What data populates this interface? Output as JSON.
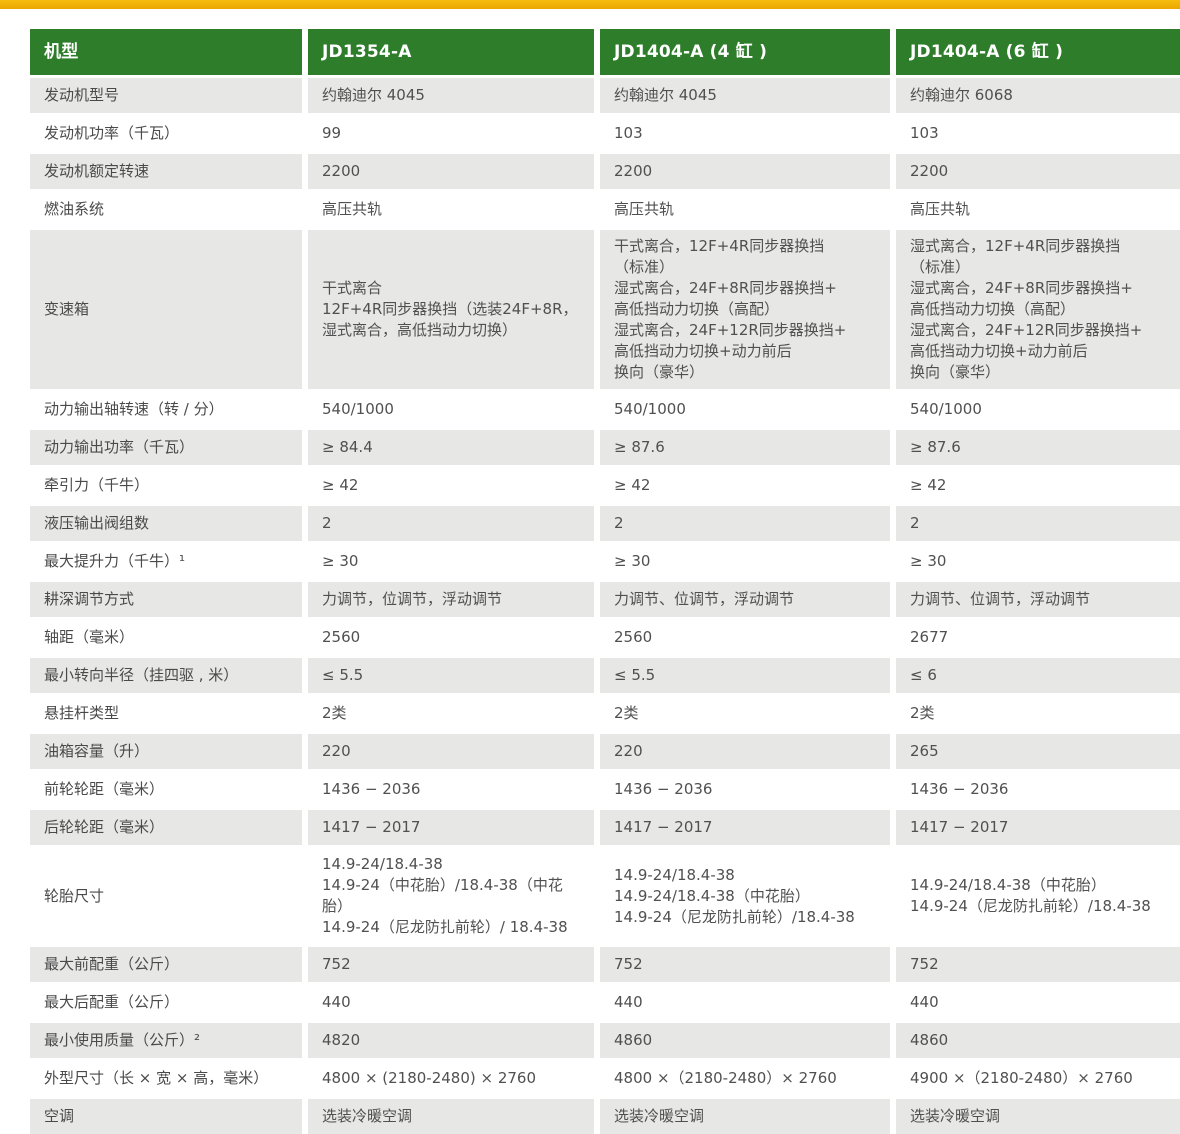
{
  "accent": {
    "top_bar_color": "#F2B200",
    "header_green": "#2E7D2B",
    "stripe_gray": "#E7E7E6"
  },
  "table": {
    "columns": [
      "机型",
      "JD1354-A",
      "JD1404-A (4 缸 )",
      "JD1404-A (6 缸 )"
    ],
    "rows": [
      {
        "label": "发动机型号",
        "values": [
          "约翰迪尔 4045",
          "约翰迪尔 4045",
          "约翰迪尔 6068"
        ]
      },
      {
        "label": "发动机功率（千瓦）",
        "values": [
          "99",
          "103",
          "103"
        ]
      },
      {
        "label": "发动机额定转速",
        "values": [
          "2200",
          "2200",
          "2200"
        ]
      },
      {
        "label": "燃油系统",
        "values": [
          "高压共轨",
          "高压共轨",
          "高压共轨"
        ]
      },
      {
        "label": "变速箱",
        "values": [
          "干式离合\n12F+4R同步器换挡（选装24F+8R，\n湿式离合，高低挡动力切换）",
          "干式离合，12F+4R同步器换挡\n（标准）\n湿式离合，24F+8R同步器换挡+\n高低挡动力切换（高配）\n湿式离合，24F+12R同步器换挡+\n高低挡动力切换+动力前后\n换向（豪华）",
          "湿式离合，12F+4R同步器换挡\n（标准）\n湿式离合，24F+8R同步器换挡+\n高低挡动力切换（高配）\n湿式离合，24F+12R同步器换挡+\n高低挡动力切换+动力前后\n换向（豪华）"
        ]
      },
      {
        "label": "动力输出轴转速（转 / 分）",
        "values": [
          "540/1000",
          "540/1000",
          "540/1000"
        ]
      },
      {
        "label": "动力输出功率（千瓦）",
        "values": [
          "≥ 84.4",
          "≥ 87.6",
          "≥ 87.6"
        ]
      },
      {
        "label": "牵引力（千牛）",
        "values": [
          "≥ 42",
          "≥ 42",
          "≥ 42"
        ]
      },
      {
        "label": "液压输出阀组数",
        "values": [
          "2",
          "2",
          "2"
        ]
      },
      {
        "label": "最大提升力（千牛）¹",
        "values": [
          "≥ 30",
          "≥ 30",
          "≥ 30"
        ]
      },
      {
        "label": "耕深调节方式",
        "values": [
          "力调节，位调节，浮动调节",
          "力调节、位调节，浮动调节",
          "力调节、位调节，浮动调节"
        ]
      },
      {
        "label": "轴距（毫米）",
        "values": [
          "2560",
          "2560",
          "2677"
        ]
      },
      {
        "label": "最小转向半径（挂四驱 , 米）",
        "values": [
          "≤ 5.5",
          "≤ 5.5",
          "≤ 6"
        ]
      },
      {
        "label": "悬挂杆类型",
        "values": [
          "2类",
          "2类",
          "2类"
        ]
      },
      {
        "label": "油箱容量（升）",
        "values": [
          "220",
          "220",
          "265"
        ]
      },
      {
        "label": "前轮轮距（毫米）",
        "values": [
          "1436 − 2036",
          "1436 − 2036",
          "1436 − 2036"
        ]
      },
      {
        "label": "后轮轮距（毫米）",
        "values": [
          "1417 − 2017",
          "1417 − 2017",
          "1417 − 2017"
        ]
      },
      {
        "label": "轮胎尺寸",
        "values": [
          "14.9-24/18.4-38\n14.9-24（中花胎）/18.4-38（中花胎）\n14.9-24（尼龙防扎前轮）/ 18.4-38",
          "14.9-24/18.4-38\n14.9-24/18.4-38（中花胎）\n14.9-24（尼龙防扎前轮）/18.4-38",
          "14.9-24/18.4-38（中花胎）\n14.9-24（尼龙防扎前轮）/18.4-38"
        ]
      },
      {
        "label": "最大前配重（公斤）",
        "values": [
          "752",
          "752",
          "752"
        ]
      },
      {
        "label": "最大后配重（公斤）",
        "values": [
          "440",
          "440",
          "440"
        ]
      },
      {
        "label": "最小使用质量（公斤）²",
        "values": [
          "4820",
          "4860",
          "4860"
        ]
      },
      {
        "label": "外型尺寸（长 × 宽 × 高，毫米）",
        "values": [
          "4800 × (2180-2480) × 2760",
          "4800 ×（2180-2480）× 2760",
          "4900 ×（2180-2480）× 2760"
        ]
      },
      {
        "label": "空调",
        "values": [
          "选装冷暖空调",
          "选装冷暖空调",
          "选装冷暖空调"
        ]
      }
    ]
  }
}
